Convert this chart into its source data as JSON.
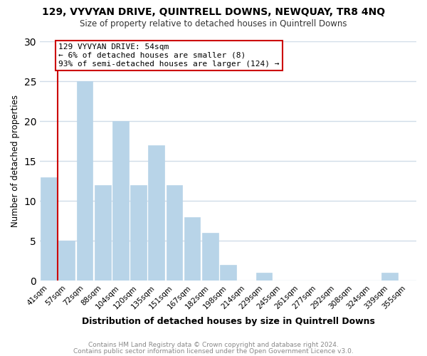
{
  "title1": "129, VYVYAN DRIVE, QUINTRELL DOWNS, NEWQUAY, TR8 4NQ",
  "title2": "Size of property relative to detached houses in Quintrell Downs",
  "xlabel": "Distribution of detached houses by size in Quintrell Downs",
  "ylabel": "Number of detached properties",
  "bar_labels": [
    "41sqm",
    "57sqm",
    "72sqm",
    "88sqm",
    "104sqm",
    "120sqm",
    "135sqm",
    "151sqm",
    "167sqm",
    "182sqm",
    "198sqm",
    "214sqm",
    "229sqm",
    "245sqm",
    "261sqm",
    "277sqm",
    "292sqm",
    "308sqm",
    "324sqm",
    "339sqm",
    "355sqm"
  ],
  "bar_values": [
    13,
    5,
    25,
    12,
    20,
    12,
    17,
    12,
    8,
    6,
    2,
    0,
    1,
    0,
    0,
    0,
    0,
    0,
    0,
    1,
    0
  ],
  "bar_color": "#b8d4e8",
  "bar_edge_color": "#b8d4e8",
  "annotation_title": "129 VYVYAN DRIVE: 54sqm",
  "annotation_line1": "← 6% of detached houses are smaller (8)",
  "annotation_line2": "93% of semi-detached houses are larger (124) →",
  "annotation_box_color": "#ffffff",
  "annotation_box_edge": "#cc0000",
  "property_line_color": "#cc0000",
  "ylim": [
    0,
    30
  ],
  "yticks": [
    0,
    5,
    10,
    15,
    20,
    25,
    30
  ],
  "footer1": "Contains HM Land Registry data © Crown copyright and database right 2024.",
  "footer2": "Contains public sector information licensed under the Open Government Licence v3.0.",
  "bg_color": "#ffffff",
  "grid_color": "#d0dce8"
}
